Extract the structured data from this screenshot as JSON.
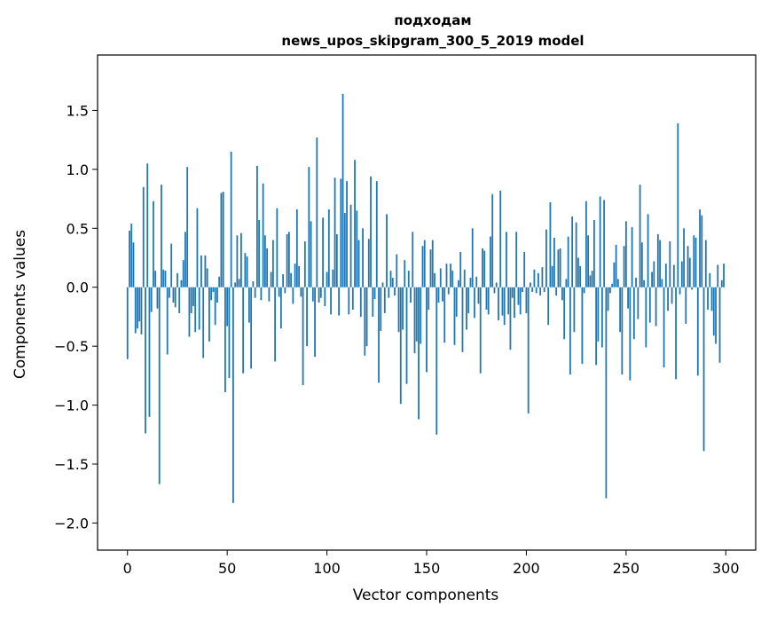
{
  "chart_data": {
    "type": "bar",
    "title_line1": "подходам",
    "title_line2": "news_upos_skipgram_300_5_2019 model",
    "xlabel": "Vector components",
    "ylabel": "Components values",
    "xlim": [
      -15,
      315
    ],
    "ylim": [
      -2.23,
      1.97
    ],
    "xticks": [
      0,
      50,
      100,
      150,
      200,
      250,
      300
    ],
    "yticks": [
      -2.0,
      -1.5,
      -1.0,
      -0.5,
      0.0,
      0.5,
      1.0,
      1.5
    ],
    "ytick_labels": [
      "−2.0",
      "−1.5",
      "−1.0",
      "−0.5",
      "0.0",
      "0.5",
      "1.0",
      "1.5"
    ],
    "bar_color": "#1f77b4",
    "grid": false,
    "values": [
      -0.61,
      0.48,
      0.54,
      0.38,
      -0.39,
      -0.35,
      -0.29,
      -0.4,
      0.85,
      -1.24,
      1.05,
      -1.1,
      -0.21,
      0.73,
      0.14,
      -0.18,
      -1.67,
      0.87,
      0.15,
      0.14,
      -0.57,
      -0.09,
      0.37,
      -0.13,
      -0.17,
      0.12,
      -0.22,
      0.06,
      0.23,
      0.47,
      1.02,
      -0.42,
      -0.22,
      -0.16,
      -0.38,
      0.67,
      -0.36,
      0.27,
      -0.6,
      0.27,
      0.16,
      -0.46,
      -0.11,
      -0.04,
      -0.32,
      -0.13,
      0.09,
      0.8,
      0.81,
      -0.89,
      -0.33,
      -0.77,
      1.15,
      -1.83,
      0.04,
      0.44,
      0.07,
      0.46,
      -0.73,
      0.29,
      0.26,
      -0.3,
      -0.69,
      0.05,
      -0.09,
      1.03,
      0.57,
      -0.11,
      0.88,
      0.44,
      0.33,
      -0.12,
      0.13,
      0.4,
      -0.63,
      0.67,
      -0.08,
      -0.35,
      0.11,
      -0.05,
      0.45,
      0.47,
      0.12,
      -0.14,
      0.2,
      0.66,
      0.18,
      -0.08,
      -0.83,
      0.39,
      -0.5,
      1.02,
      0.56,
      -0.12,
      -0.59,
      1.27,
      -0.13,
      -0.09,
      0.59,
      -0.16,
      0.13,
      0.66,
      -0.23,
      0.15,
      0.93,
      0.45,
      -0.24,
      0.92,
      1.64,
      0.63,
      0.9,
      -0.23,
      0.7,
      -0.19,
      1.08,
      0.65,
      0.4,
      -0.25,
      0.5,
      -0.58,
      -0.5,
      0.41,
      0.94,
      -0.25,
      -0.1,
      0.9,
      -0.81,
      -0.37,
      0.04,
      -0.22,
      0.62,
      -0.09,
      0.14,
      0.08,
      -0.07,
      0.28,
      -0.38,
      -0.99,
      -0.36,
      0.23,
      -0.82,
      0.14,
      -0.13,
      0.47,
      -0.56,
      -0.46,
      -1.12,
      -0.48,
      0.35,
      0.4,
      -0.72,
      -0.19,
      0.32,
      0.4,
      0.12,
      -1.25,
      -0.13,
      0.16,
      -0.12,
      -0.47,
      0.2,
      -0.06,
      0.2,
      0.14,
      -0.49,
      -0.25,
      0.06,
      0.3,
      -0.55,
      0.15,
      -0.36,
      -0.22,
      0.08,
      0.5,
      -0.26,
      0.09,
      -0.14,
      -0.73,
      0.33,
      0.31,
      -0.19,
      -0.23,
      0.43,
      0.79,
      -0.05,
      0.04,
      -0.28,
      0.82,
      -0.24,
      -0.32,
      0.47,
      -0.23,
      -0.53,
      -0.09,
      -0.26,
      0.47,
      -0.15,
      -0.23,
      -0.04,
      0.3,
      -0.22,
      -1.07,
      0.04,
      -0.04,
      0.15,
      -0.05,
      0.12,
      -0.07,
      0.17,
      -0.04,
      0.49,
      -0.32,
      0.72,
      0.18,
      0.42,
      -0.07,
      0.32,
      0.33,
      -0.11,
      -0.44,
      0.07,
      0.43,
      -0.74,
      0.6,
      -0.38,
      0.55,
      0.25,
      0.18,
      -0.65,
      -0.05,
      0.73,
      0.44,
      0.1,
      0.14,
      0.57,
      -0.66,
      -0.46,
      0.77,
      -0.51,
      0.74,
      -1.79,
      -0.2,
      -0.05,
      0.03,
      0.21,
      0.36,
      0.07,
      -0.38,
      -0.74,
      0.35,
      0.56,
      -0.18,
      -0.79,
      0.51,
      -0.44,
      0.08,
      -0.27,
      0.87,
      0.38,
      0.06,
      -0.51,
      0.62,
      -0.3,
      0.13,
      0.22,
      -0.33,
      0.45,
      0.4,
      0.07,
      -0.68,
      0.2,
      -0.2,
      0.39,
      -0.14,
      0.19,
      -0.78,
      1.39,
      -0.06,
      0.22,
      0.5,
      -0.31,
      0.35,
      0.25,
      -0.02,
      0.44,
      0.42,
      -0.75,
      0.66,
      0.61,
      -1.39,
      0.4,
      -0.19,
      0.12,
      -0.2,
      -0.41,
      -0.48,
      0.19,
      -0.64,
      0.06,
      0.2
    ]
  }
}
